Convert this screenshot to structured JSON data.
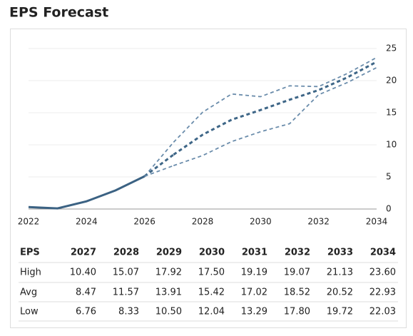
{
  "title": "EPS Forecast",
  "chart_data": {
    "type": "line",
    "x": [
      2022,
      2023,
      2024,
      2025,
      2026,
      2027,
      2028,
      2029,
      2030,
      2031,
      2032,
      2033,
      2034
    ],
    "xlim": [
      2022,
      2034
    ],
    "xticks": [
      2022,
      2024,
      2026,
      2028,
      2030,
      2032,
      2034
    ],
    "ylim": [
      0,
      25
    ],
    "yticks": [
      0,
      5,
      10,
      15,
      20,
      25
    ],
    "grid": true,
    "series": [
      {
        "color": "#3b6283",
        "dashed": false,
        "values": [
          0.3,
          0.1,
          1.2,
          2.9,
          5.1,
          null,
          null,
          null,
          null,
          null,
          null,
          null,
          null
        ]
      },
      {
        "name": "High",
        "color": "#6a8cab",
        "dashed": true,
        "values": [
          null,
          null,
          null,
          null,
          null,
          10.4,
          15.07,
          17.92,
          17.5,
          19.19,
          19.07,
          21.13,
          23.6
        ],
        "value_labels": [
          null,
          null,
          null,
          null,
          null,
          "10.40",
          "15.07",
          "17.92",
          "17.50",
          "19.19",
          "19.07",
          "21.13",
          "23.60"
        ]
      },
      {
        "name": "Avg",
        "color": "#3e6687",
        "dashed": true,
        "values": [
          null,
          null,
          null,
          null,
          null,
          8.47,
          11.57,
          13.91,
          15.42,
          17.02,
          18.52,
          20.52,
          22.93
        ],
        "value_labels": [
          null,
          null,
          null,
          null,
          null,
          "8.47",
          "11.57",
          "13.91",
          "15.42",
          "17.02",
          "18.52",
          "20.52",
          "22.93"
        ]
      },
      {
        "name": "Low",
        "color": "#6a8cab",
        "dashed": true,
        "values": [
          null,
          null,
          null,
          null,
          null,
          6.76,
          8.33,
          10.5,
          12.04,
          13.29,
          17.8,
          19.72,
          22.03
        ],
        "value_labels": [
          null,
          null,
          null,
          null,
          null,
          "6.76",
          "8.33",
          "10.50",
          "12.04",
          "13.29",
          "17.80",
          "19.72",
          "22.03"
        ]
      }
    ]
  },
  "table_header": "EPS"
}
